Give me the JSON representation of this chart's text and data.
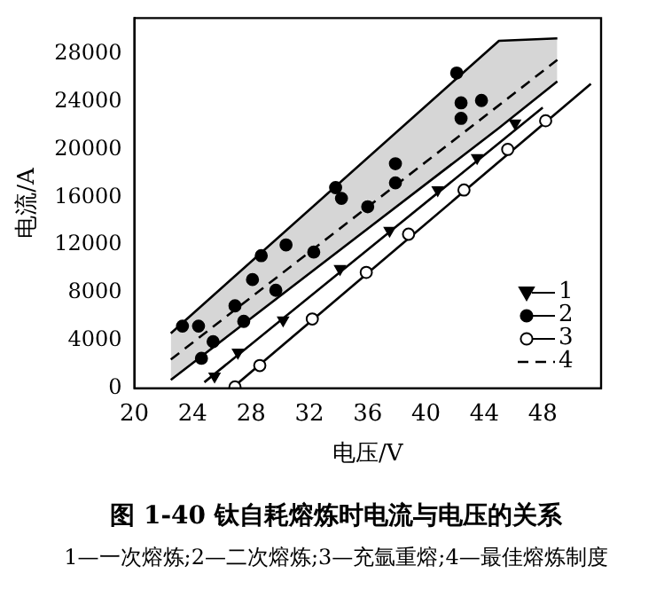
{
  "chart_data": {
    "type": "scatter",
    "title": "图 1-40    钛自耗熔炼时电流与电压的关系",
    "xlabel": "电压/V",
    "ylabel": "电流/A",
    "annotations": [
      "1—一次熔炼;2—二次熔炼;3—充氩重熔;4—最佳熔炼制度"
    ],
    "xlim": [
      20,
      52
    ],
    "ylim": [
      0,
      31000
    ],
    "xticks": [
      20,
      24,
      28,
      32,
      36,
      40,
      44,
      48
    ],
    "yticks": [
      0,
      4000,
      8000,
      12000,
      16000,
      20000,
      24000,
      28000
    ],
    "grid": false,
    "legend": "bottom right",
    "series": [
      {
        "name": "1",
        "marker": "triangle",
        "color": "#000000",
        "x": [
          25.5,
          27.1,
          30.2,
          34.1,
          37.5,
          40.8,
          43.5,
          46.1
        ],
        "values": [
          1000,
          3000,
          5700,
          10000,
          13200,
          16600,
          19300,
          22200
        ]
      },
      {
        "name": "2",
        "marker": "circle",
        "color": "#000000",
        "x": [
          23.3,
          24.4,
          24.6,
          25.4,
          26.9,
          27.5,
          28.1,
          28.7,
          29.7,
          30.4,
          32.3,
          33.8,
          34.2,
          36.0,
          37.9,
          37.9,
          42.1,
          42.4,
          42.4,
          43.8
        ],
        "values": [
          5200,
          5200,
          2500,
          3900,
          6900,
          5600,
          9100,
          11100,
          8200,
          12000,
          11400,
          16800,
          15900,
          15200,
          18800,
          17200,
          26400,
          23900,
          22600,
          24100
        ]
      },
      {
        "name": "3",
        "marker": "circle",
        "color": "#ffffff",
        "x": [
          26.9,
          28.6,
          32.2,
          35.9,
          38.8,
          42.6,
          45.6,
          48.2
        ],
        "values": [
          100,
          1900,
          5800,
          9700,
          12900,
          16600,
          20000,
          22400
        ]
      },
      {
        "name": "4",
        "type": "line",
        "line_style": "dashed",
        "color": "#000000",
        "x": [
          22.5,
          45,
          49
        ],
        "values": [
          2400,
          23700,
          27500
        ],
        "lower": [
          700,
          21800,
          25700
        ],
        "upper": [
          4600,
          29100,
          29300
        ]
      },
      {
        "type": "line",
        "line_style": "solid",
        "color": "#000000",
        "x": [
          22.5,
          45,
          49
        ],
        "values": [
          4600,
          29100,
          29300
        ]
      },
      {
        "type": "line",
        "line_style": "solid",
        "color": "#000000",
        "x": [
          22.5,
          45,
          49
        ],
        "values": [
          700,
          21800,
          25700
        ]
      },
      {
        "type": "line",
        "line_style": "solid",
        "color": "#000000",
        "x": [
          24.8,
          48.0
        ],
        "values": [
          500,
          23500
        ]
      },
      {
        "type": "line",
        "line_style": "solid",
        "color": "#000000",
        "x": [
          26.7,
          51.3
        ],
        "values": [
          0,
          25500
        ]
      }
    ]
  }
}
